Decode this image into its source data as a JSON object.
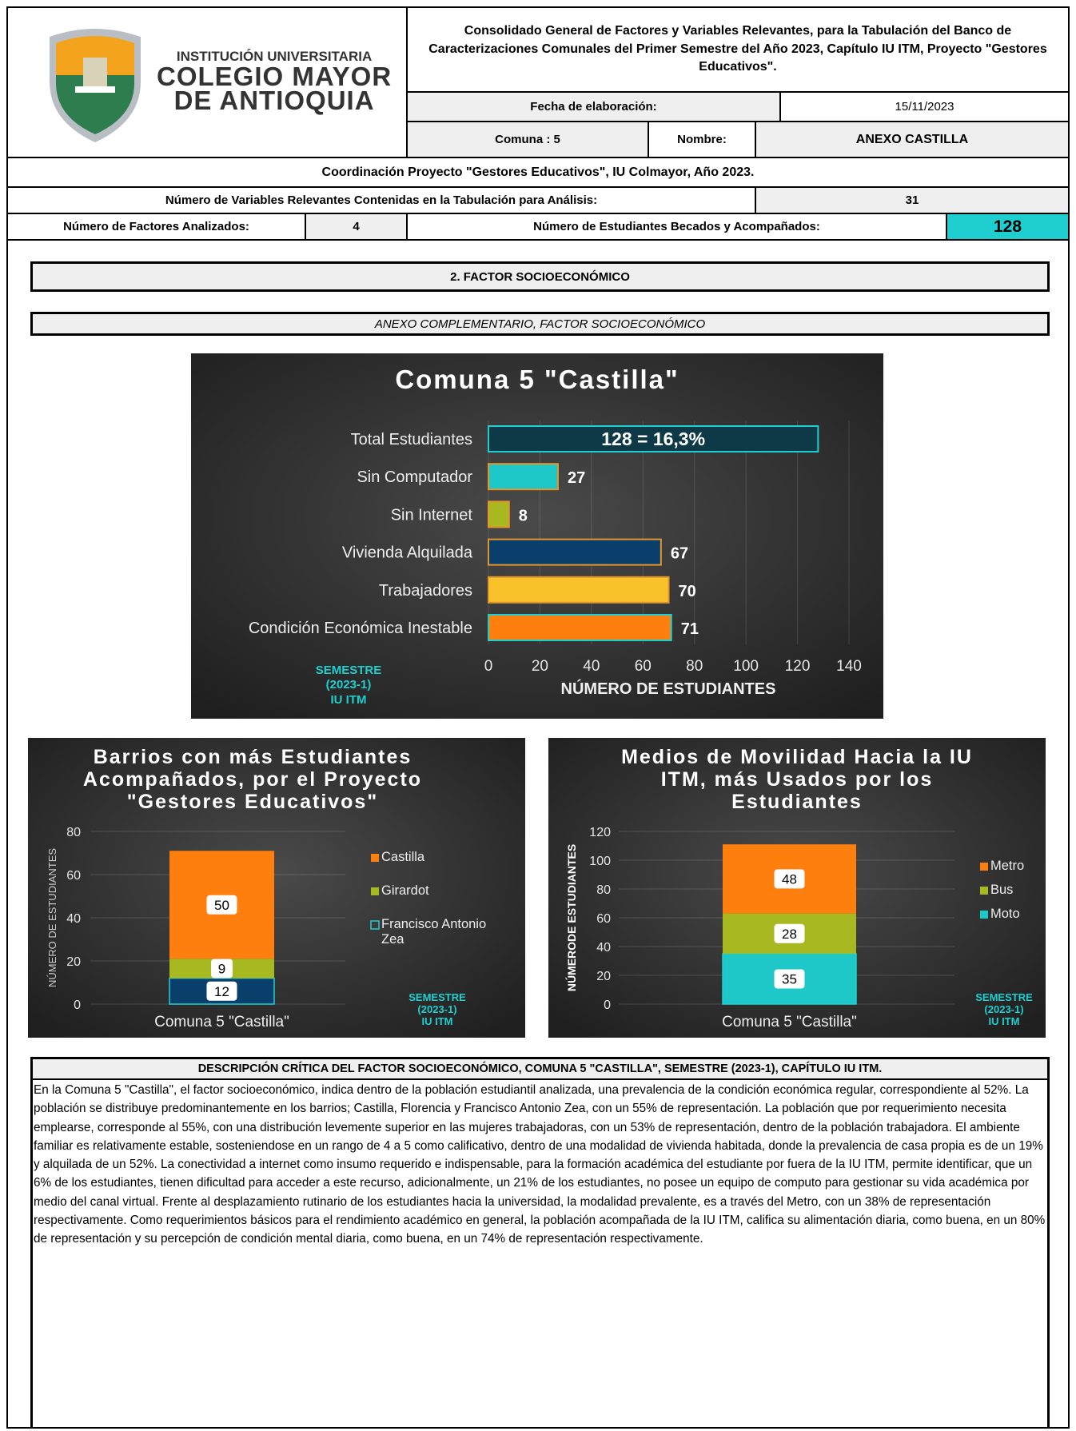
{
  "header": {
    "logo_lines": [
      "INSTITUCIÓN UNIVERSITARIA",
      "COLEGIO MAYOR",
      "DE ANTIOQUIA"
    ],
    "title": "Consolidado General de Factores y Variables Relevantes, para la Tabulación del Banco de Caracterizaciones Comunales del Primer Semestre del Año 2023, Capítulo IU ITM, Proyecto \"Gestores Educativos\".",
    "fecha_label": "Fecha de elaboración:",
    "fecha": "15/11/2023",
    "comuna": "Comuna : 5",
    "nombre_label": "Nombre:",
    "nombre": "ANEXO CASTILLA",
    "coordinacion": "Coordinación Proyecto \"Gestores Educativos\", IU Colmayor, Año 2023.",
    "variables_label": "Número de Variables Relevantes Contenidas en la Tabulación para Análisis:",
    "variables": 31,
    "factores_label": "Número de Factores Analizados:",
    "factores": 4,
    "estudiantes_label": "Número de Estudiantes Becados y Acompañados:",
    "estudiantes": 128
  },
  "section": "2. FACTOR SOCIOECONÓMICO",
  "subsection": "ANEXO COMPLEMENTARIO, FACTOR SOCIOECONÓMICO",
  "chart_data": [
    {
      "type": "hbar",
      "title": "Comuna 5 \"Castilla\"",
      "categories": [
        "Total Estudiantes",
        "Sin Computador",
        "Sin Internet",
        "Vivienda Alquilada",
        "Trabajadores",
        "Condición Económica Inestable"
      ],
      "values": [
        128,
        27,
        8,
        67,
        70,
        71
      ],
      "value_labels": [
        "128 = 16,3%",
        "27",
        "8",
        "67",
        "70",
        "71"
      ],
      "colors": [
        "#0e3a47",
        "#1fc8c8",
        "#a8b820",
        "#0b3f6b",
        "#f8c22a",
        "#ff7f0e"
      ],
      "xlim": [
        0,
        140
      ],
      "xticks": [
        0,
        20,
        40,
        60,
        80,
        100,
        120,
        140
      ],
      "xlabel": "NÚMERO DE ESTUDIANTES",
      "annotation": [
        "SEMESTRE",
        "(2023-1)",
        "IU ITM"
      ],
      "grid": true
    },
    {
      "type": "stacked_bar",
      "title": "Barrios con más Estudiantes Acompañados, por el Proyecto \"Gestores Educativos\"",
      "categories": [
        "Comuna 5 \"Castilla\""
      ],
      "series": [
        {
          "name": "Francisco Antonio Zea",
          "color": "#0b3f6b",
          "values": [
            12
          ]
        },
        {
          "name": "Girardot",
          "color": "#a8b820",
          "values": [
            9
          ]
        },
        {
          "name": "Castilla",
          "color": "#ff7f0e",
          "values": [
            50
          ]
        }
      ],
      "ylabel": "NÚMERO DE ESTUDIANTES",
      "ylim": [
        0,
        80
      ],
      "yticks": [
        0,
        20,
        40,
        60,
        80
      ],
      "annotation": [
        "SEMESTRE",
        "(2023-1)",
        "IU ITM"
      ],
      "legend": "right",
      "grid": true
    },
    {
      "type": "stacked_bar",
      "title": "Medios de Movilidad Hacia la IU ITM, más Usados por los Estudiantes",
      "categories": [
        "Comuna 5 \"Castilla\""
      ],
      "series": [
        {
          "name": "Moto",
          "color": "#1fc8c8",
          "values": [
            35
          ]
        },
        {
          "name": "Bus",
          "color": "#a8b820",
          "values": [
            28
          ]
        },
        {
          "name": "Metro",
          "color": "#ff7f0e",
          "values": [
            48
          ]
        }
      ],
      "ylabel": "NÚMERODE ESTUDIANTES",
      "ylim": [
        0,
        120
      ],
      "yticks": [
        0,
        20,
        40,
        60,
        80,
        100,
        120
      ],
      "annotation": [
        "SEMESTRE",
        "(2023-1)",
        "IU ITM"
      ],
      "legend": "right",
      "grid": true
    }
  ],
  "description": {
    "title": "DESCRIPCIÓN CRÍTICA DEL FACTOR SOCIOECONÓMICO, COMUNA 5 \"CASTILLA\", SEMESTRE (2023-1), CAPÍTULO IU ITM.",
    "text": "En la Comuna 5 \"Castilla\", el factor socioeconómico, indica dentro de la población estudiantil analizada, una prevalencia de la condición económica regular, correspondiente al 52%. La población se distribuye predominantemente en los barrios; Castilla, Florencia y Francisco Antonio Zea, con un 55% de representación. La población que por requerimiento necesita emplearse, corresponde al 55%, con una distribución levemente superior en las mujeres trabajadoras, con un 53% de representación, dentro de la población trabajadora. El ambiente familiar es relativamente estable, sosteniendose en un rango de 4 a 5 como calificativo, dentro de una modalidad de vivienda habitada, donde la prevalencia de casa propia es de un 19% y alquilada de un 52%. La conectividad a internet como insumo requerido e indispensable, para la formación académica del estudiante por fuera de la IU ITM, permite identificar, que un 6% de los estudiantes, tienen dificultad para acceder a este recurso, adicionalmente, un 21% de los estudiantes, no posee un equipo de computo para gestionar su vida académica por medio del canal virtual. Frente al desplazamiento rutinario de los estudiantes hacia la universidad, la modalidad prevalente, es a través del Metro, con un 38% de representación respectivamente. Como requerimientos básicos para el rendimiento académico en general, la población acompañada de la IU ITM, califica su alimentación diaria, como buena, en un 80% de representación y su percepción de condición mental diaria, como buena, en un 74% de representación respectivamente."
  }
}
